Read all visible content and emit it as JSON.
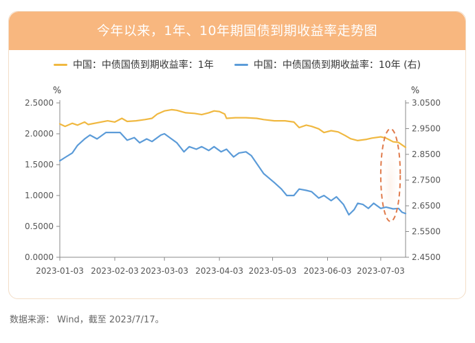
{
  "chart_data": {
    "type": "line",
    "title": "今年以来，1年、10年期国债到期收益率走势图",
    "legend_position": "top",
    "grid": false,
    "x_ticks": [
      "2023-01-03",
      "2023-02-03",
      "2023-03-03",
      "2023-04-03",
      "2023-05-03",
      "2023-06-03",
      "2023-07-03"
    ],
    "x_range": [
      "2023-01-03",
      "2023-07-17"
    ],
    "y_left": {
      "unit": "%",
      "range": [
        0,
        2.5
      ],
      "ticks": [
        "0.0000",
        "0.5000",
        "1.0000",
        "1.5000",
        "2.0000",
        "2.5000"
      ]
    },
    "y_right": {
      "unit": "%",
      "range": [
        2.45,
        3.05
      ],
      "ticks": [
        "2.4500",
        "2.5500",
        "2.6500",
        "2.7500",
        "2.8500",
        "2.9500",
        "3.0500"
      ]
    },
    "series": [
      {
        "name": "中国：中债国债到期收益率：1年",
        "axis": "left",
        "color": "#f0b840",
        "points": [
          [
            "2023-01-03",
            2.16
          ],
          [
            "2023-01-06",
            2.12
          ],
          [
            "2023-01-10",
            2.17
          ],
          [
            "2023-01-13",
            2.14
          ],
          [
            "2023-01-17",
            2.19
          ],
          [
            "2023-01-19",
            2.15
          ],
          [
            "2023-01-30",
            2.21
          ],
          [
            "2023-02-03",
            2.19
          ],
          [
            "2023-02-07",
            2.25
          ],
          [
            "2023-02-10",
            2.2
          ],
          [
            "2023-02-15",
            2.21
          ],
          [
            "2023-02-20",
            2.23
          ],
          [
            "2023-02-24",
            2.25
          ],
          [
            "2023-02-27",
            2.32
          ],
          [
            "2023-03-03",
            2.37
          ],
          [
            "2023-03-07",
            2.39
          ],
          [
            "2023-03-10",
            2.38
          ],
          [
            "2023-03-15",
            2.34
          ],
          [
            "2023-03-20",
            2.33
          ],
          [
            "2023-03-24",
            2.31
          ],
          [
            "2023-03-28",
            2.34
          ],
          [
            "2023-03-31",
            2.37
          ],
          [
            "2023-04-03",
            2.36
          ],
          [
            "2023-04-06",
            2.32
          ],
          [
            "2023-04-07",
            2.25
          ],
          [
            "2023-04-12",
            2.26
          ],
          [
            "2023-04-18",
            2.26
          ],
          [
            "2023-04-24",
            2.25
          ],
          [
            "2023-04-28",
            2.23
          ],
          [
            "2023-05-04",
            2.21
          ],
          [
            "2023-05-10",
            2.21
          ],
          [
            "2023-05-15",
            2.19
          ],
          [
            "2023-05-18",
            2.1
          ],
          [
            "2023-05-22",
            2.14
          ],
          [
            "2023-05-25",
            2.12
          ],
          [
            "2023-05-29",
            2.08
          ],
          [
            "2023-06-01",
            2.02
          ],
          [
            "2023-06-05",
            2.05
          ],
          [
            "2023-06-09",
            2.03
          ],
          [
            "2023-06-13",
            1.97
          ],
          [
            "2023-06-16",
            1.92
          ],
          [
            "2023-06-20",
            1.89
          ],
          [
            "2023-06-25",
            1.91
          ],
          [
            "2023-06-28",
            1.93
          ],
          [
            "2023-07-03",
            1.95
          ],
          [
            "2023-07-06",
            1.93
          ],
          [
            "2023-07-08",
            1.9
          ],
          [
            "2023-07-10",
            1.87
          ],
          [
            "2023-07-13",
            1.86
          ],
          [
            "2023-07-15",
            1.82
          ],
          [
            "2023-07-17",
            1.78
          ]
        ]
      },
      {
        "name": "中国：中债国债到期收益率：10年 (右)",
        "axis": "right",
        "color": "#5b9bd8",
        "points": [
          [
            "2023-01-03",
            2.825
          ],
          [
            "2023-01-06",
            2.838
          ],
          [
            "2023-01-10",
            2.855
          ],
          [
            "2023-01-13",
            2.885
          ],
          [
            "2023-01-17",
            2.91
          ],
          [
            "2023-01-20",
            2.925
          ],
          [
            "2023-01-24",
            2.91
          ],
          [
            "2023-01-29",
            2.935
          ],
          [
            "2023-02-06",
            2.935
          ],
          [
            "2023-02-10",
            2.905
          ],
          [
            "2023-02-14",
            2.915
          ],
          [
            "2023-02-17",
            2.895
          ],
          [
            "2023-02-21",
            2.91
          ],
          [
            "2023-02-24",
            2.9
          ],
          [
            "2023-03-01",
            2.925
          ],
          [
            "2023-03-03",
            2.93
          ],
          [
            "2023-03-07",
            2.91
          ],
          [
            "2023-03-10",
            2.895
          ],
          [
            "2023-03-14",
            2.86
          ],
          [
            "2023-03-17",
            2.88
          ],
          [
            "2023-03-21",
            2.87
          ],
          [
            "2023-03-24",
            2.88
          ],
          [
            "2023-03-28",
            2.865
          ],
          [
            "2023-03-31",
            2.88
          ],
          [
            "2023-04-04",
            2.86
          ],
          [
            "2023-04-07",
            2.87
          ],
          [
            "2023-04-11",
            2.84
          ],
          [
            "2023-04-14",
            2.855
          ],
          [
            "2023-04-18",
            2.86
          ],
          [
            "2023-04-21",
            2.845
          ],
          [
            "2023-04-25",
            2.805
          ],
          [
            "2023-04-28",
            2.775
          ],
          [
            "2023-05-04",
            2.74
          ],
          [
            "2023-05-08",
            2.715
          ],
          [
            "2023-05-11",
            2.69
          ],
          [
            "2023-05-15",
            2.69
          ],
          [
            "2023-05-18",
            2.715
          ],
          [
            "2023-05-22",
            2.71
          ],
          [
            "2023-05-25",
            2.705
          ],
          [
            "2023-05-29",
            2.68
          ],
          [
            "2023-06-01",
            2.69
          ],
          [
            "2023-06-05",
            2.67
          ],
          [
            "2023-06-08",
            2.685
          ],
          [
            "2023-06-12",
            2.655
          ],
          [
            "2023-06-15",
            2.615
          ],
          [
            "2023-06-18",
            2.635
          ],
          [
            "2023-06-20",
            2.66
          ],
          [
            "2023-06-23",
            2.655
          ],
          [
            "2023-06-26",
            2.64
          ],
          [
            "2023-06-29",
            2.66
          ],
          [
            "2023-07-03",
            2.64
          ],
          [
            "2023-07-06",
            2.645
          ],
          [
            "2023-07-10",
            2.638
          ],
          [
            "2023-07-13",
            2.64
          ],
          [
            "2023-07-15",
            2.625
          ],
          [
            "2023-07-17",
            2.62
          ]
        ]
      }
    ],
    "annotation": {
      "shape": "dashed-ellipse",
      "color": "#e07a4a",
      "x_range": [
        "2023-07-03",
        "2023-07-14"
      ],
      "y_left_range": [
        0.58,
        2.08
      ]
    }
  },
  "source_note": "数据来源： Wind，截至 2023/7/17。",
  "colors": {
    "banner": "#f8b77f",
    "card_border": "#f3ddc6",
    "axis": "#888888"
  }
}
